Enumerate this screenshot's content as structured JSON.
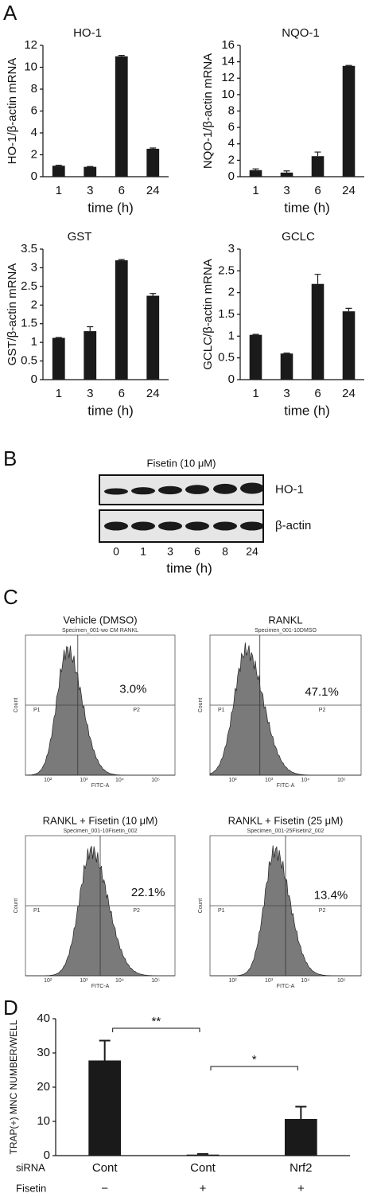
{
  "panel_labels": [
    "A",
    "B",
    "C",
    "D"
  ],
  "chart_data": [
    {
      "type": "bar",
      "title": "HO-1",
      "ylabel": "HO-1/β-actin mRNA",
      "xlabel": "time (h)",
      "categories": [
        "1",
        "3",
        "6",
        "24"
      ],
      "values": [
        1.0,
        0.9,
        11.0,
        2.55
      ],
      "errors": [
        0.05,
        0.03,
        0.08,
        0.07
      ],
      "color": "#1a1a1a",
      "ylim": [
        0,
        12
      ],
      "yticks": [
        0,
        2,
        4,
        6,
        8,
        10,
        12
      ]
    },
    {
      "type": "bar",
      "title": "NQO-1",
      "ylabel": "NQO-1/β-actin mRNA",
      "xlabel": "time (h)",
      "categories": [
        "1",
        "3",
        "6",
        "24"
      ],
      "values": [
        0.8,
        0.5,
        2.5,
        13.5
      ],
      "errors": [
        0.15,
        0.2,
        0.5,
        0.05
      ],
      "color": "#1a1a1a",
      "ylim": [
        0,
        16
      ],
      "yticks": [
        0,
        2,
        4,
        6,
        8,
        10,
        12,
        14,
        16
      ]
    },
    {
      "type": "bar",
      "title": "GST",
      "ylabel": "GST/β-actin mRNA",
      "xlabel": "time (h)",
      "categories": [
        "1",
        "3",
        "6",
        "24"
      ],
      "values": [
        1.12,
        1.3,
        3.2,
        2.25
      ],
      "errors": [
        0.01,
        0.12,
        0.02,
        0.06
      ],
      "color": "#1a1a1a",
      "ylim": [
        0,
        3.5
      ],
      "yticks": [
        0,
        0.5,
        1,
        1.5,
        2,
        2.5,
        3,
        3.5
      ]
    },
    {
      "type": "bar",
      "title": "GCLC",
      "ylabel": "GCLC/β-actin mRNA",
      "xlabel": "time (h)",
      "categories": [
        "1",
        "3",
        "6",
        "24"
      ],
      "values": [
        1.03,
        0.6,
        2.2,
        1.57
      ],
      "errors": [
        0.01,
        0.01,
        0.22,
        0.07
      ],
      "color": "#1a1a1a",
      "ylim": [
        0,
        3
      ],
      "yticks": [
        0,
        0.5,
        1,
        1.5,
        2,
        2.5,
        3
      ]
    },
    {
      "type": "bar",
      "ylabel": "TRAP(+) MNC NUMBER/WELL",
      "row_labels": [
        "siRNA",
        "Fisetin"
      ],
      "categories": [
        "Cont",
        "Cont",
        "Nrf2"
      ],
      "fisetin": [
        "−",
        "+",
        "+"
      ],
      "values": [
        27.8,
        0.3,
        10.7
      ],
      "errors": [
        5.8,
        0.2,
        3.6
      ],
      "annotations": [
        "**",
        "*"
      ],
      "color": "#1a1a1a",
      "ylim": [
        0,
        40
      ],
      "yticks": [
        0,
        10,
        20,
        30,
        40
      ]
    }
  ],
  "blot": {
    "title": "Fisetin (10 μM)",
    "rows": [
      "HO-1",
      "β-actin"
    ],
    "lanes": [
      "0",
      "1",
      "3",
      "6",
      "8",
      "24"
    ],
    "xlabel": "time (h)"
  },
  "flow": {
    "x_label": "FITC-A",
    "y_label": "Count",
    "ticks": [
      "10²",
      "10³",
      "10⁴",
      "10⁵"
    ],
    "panels": [
      {
        "title": "Vehicle (DMSO)",
        "specimen": "Specimen_001-wo CM RANKL",
        "gate_left": "P1",
        "gate_right": "P2",
        "percent": "3.0%"
      },
      {
        "title": "RANKL",
        "specimen": "Specimen_001-10DMSO",
        "gate_left": "P1",
        "gate_right": "P2",
        "percent": "47.1%"
      },
      {
        "title": "RANKL + Fisetin (10 μM)",
        "specimen": "Specimen_001-10Fisetin_002",
        "gate_left": "P1",
        "gate_right": "P2",
        "percent": "22.1%"
      },
      {
        "title": "RANKL + Fisetin (25 μM)",
        "specimen": "Specimen_001-25Fisetin2_002",
        "gate_left": "P1",
        "gate_right": "P2",
        "percent": "13.4%"
      }
    ]
  }
}
